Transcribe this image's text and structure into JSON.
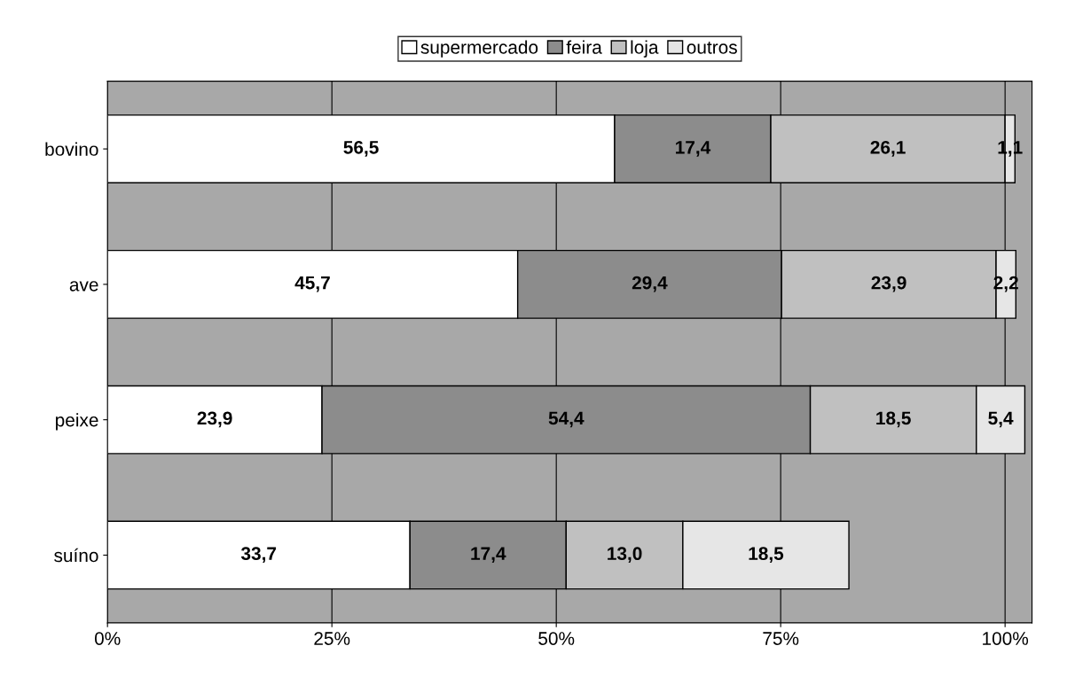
{
  "chart_data": {
    "type": "bar",
    "orientation": "horizontal",
    "stacked": true,
    "categories": [
      "bovino",
      "ave",
      "peixe",
      "suíno"
    ],
    "series": [
      {
        "name": "supermercado",
        "color": "#ffffff",
        "values": [
          56.5,
          45.7,
          23.9,
          33.7
        ],
        "value_labels": [
          "56,5",
          "45,7",
          "23,9",
          "33,7"
        ]
      },
      {
        "name": "feira",
        "color": "#8c8c8c",
        "values": [
          17.4,
          29.4,
          54.4,
          17.4
        ],
        "value_labels": [
          "17,4",
          "29,4",
          "54,4",
          "17,4"
        ]
      },
      {
        "name": "loja",
        "color": "#c0c0c0",
        "values": [
          26.1,
          23.9,
          18.5,
          13.0
        ],
        "value_labels": [
          "26,1",
          "23,9",
          "18,5",
          "13,0"
        ]
      },
      {
        "name": "outros",
        "color": "#e6e6e6",
        "values": [
          1.1,
          2.2,
          5.4,
          18.5
        ],
        "value_labels": [
          "1,1",
          "2,2",
          "5,4",
          "18,5"
        ]
      }
    ],
    "xlim": [
      0,
      103
    ],
    "xticks": [
      {
        "value": 0,
        "label": "0%"
      },
      {
        "value": 25,
        "label": "25%"
      },
      {
        "value": 50,
        "label": "50%"
      },
      {
        "value": 75,
        "label": "75%"
      },
      {
        "value": 100,
        "label": "100%"
      }
    ],
    "grid": "x",
    "legend": "top"
  }
}
